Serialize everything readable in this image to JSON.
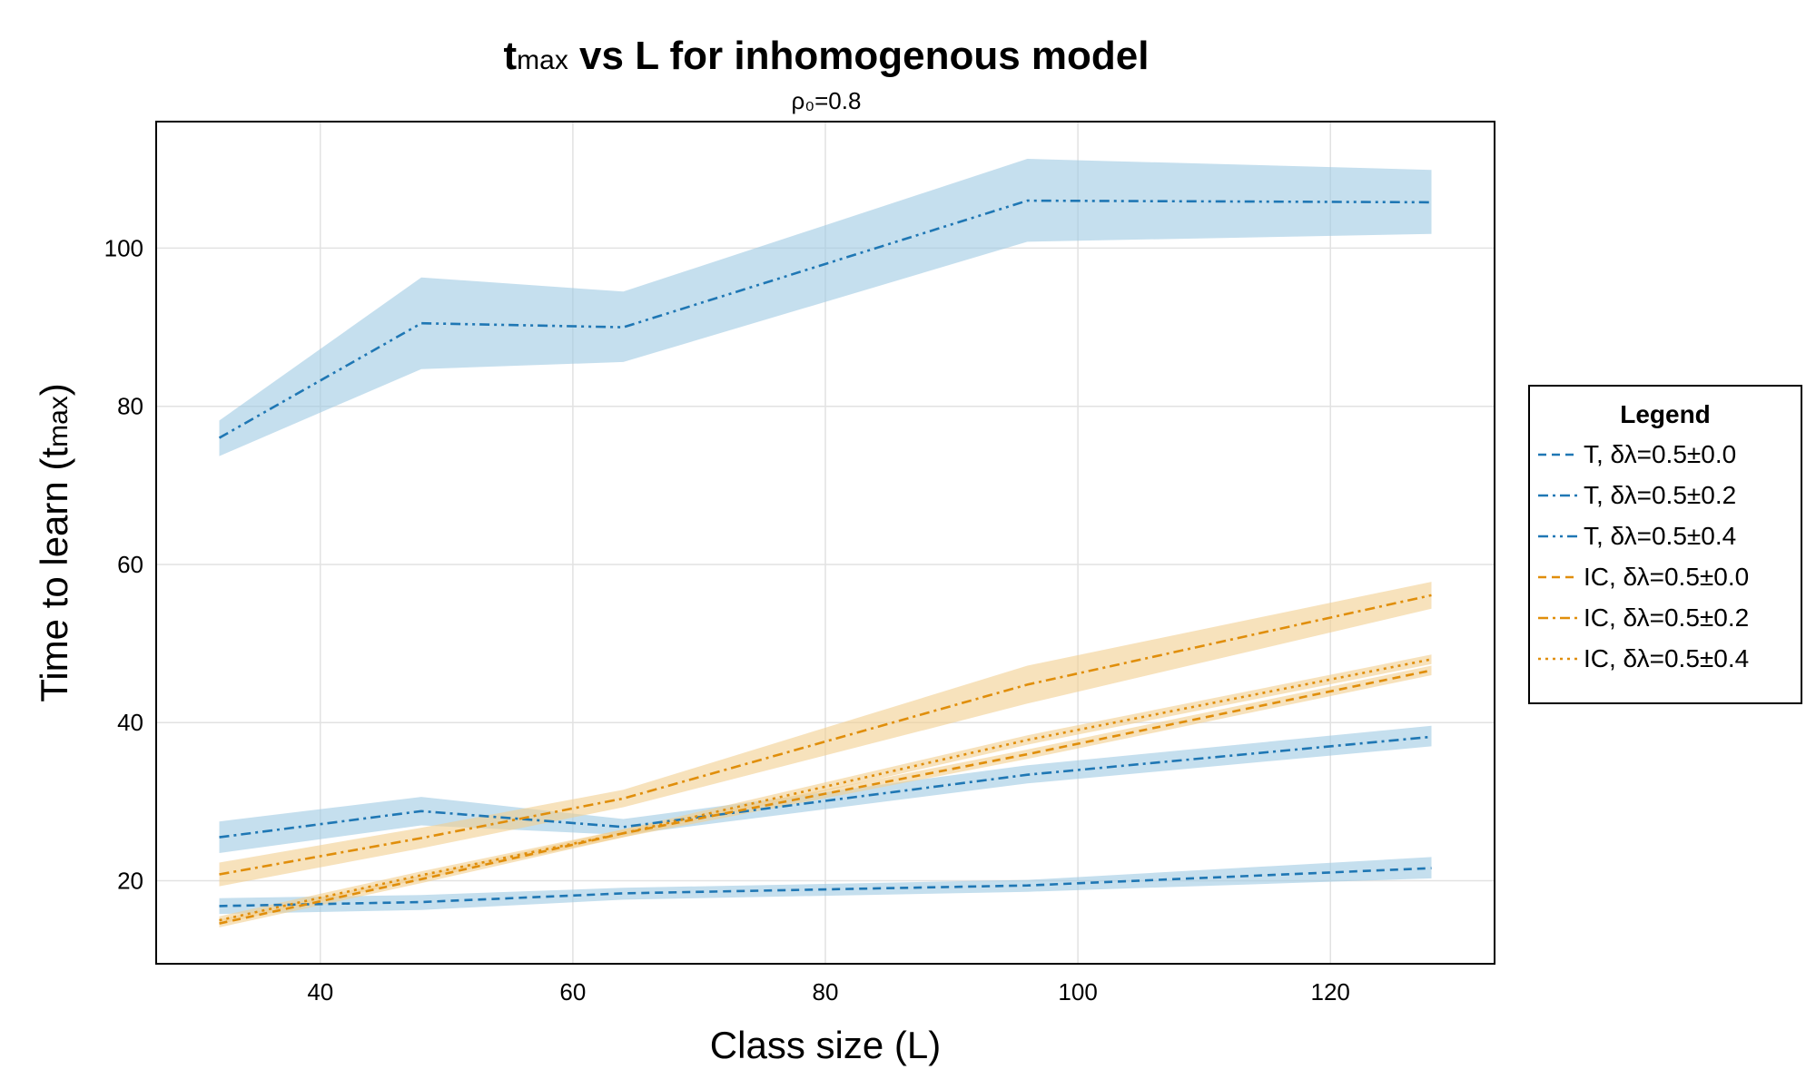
{
  "chart_data": {
    "type": "line",
    "title_main": "t",
    "title_sub_script": "max",
    "title_rest": " vs L for inhomogenous model",
    "subtitle": "ρ₀=0.8",
    "xlabel": "Class size (L)",
    "ylabel_main": "Time to learn (t",
    "ylabel_sub": "max",
    "ylabel_end": ")",
    "xlim": [
      27,
      133
    ],
    "ylim": [
      9.5,
      116
    ],
    "xticks": [
      40,
      60,
      80,
      100,
      120
    ],
    "yticks": [
      20,
      40,
      60,
      80,
      100
    ],
    "grid": true,
    "legend": {
      "title": "Legend",
      "placement": "right"
    },
    "x": [
      32,
      48,
      64,
      96,
      128
    ],
    "series": [
      {
        "name": "T, δλ=0.5±0.0",
        "color": "#1f77b4",
        "band_color": "#9ec9e2",
        "dash": "dash",
        "values": [
          16.8,
          17.3,
          18.4,
          19.4,
          21.6
        ],
        "lower": [
          15.8,
          16.3,
          17.6,
          18.6,
          20.3
        ],
        "upper": [
          17.8,
          18.2,
          19.1,
          20.1,
          23.0
        ]
      },
      {
        "name": "T, δλ=0.5±0.2",
        "color": "#1f77b4",
        "band_color": "#9ec9e2",
        "dash": "dashdot",
        "values": [
          25.5,
          28.8,
          26.8,
          33.4,
          38.2
        ],
        "lower": [
          23.5,
          27.0,
          25.8,
          32.3,
          37.0
        ],
        "upper": [
          27.5,
          30.6,
          27.8,
          34.6,
          39.6
        ]
      },
      {
        "name": "T, δλ=0.5±0.4",
        "color": "#1f77b4",
        "band_color": "#9ec9e2",
        "dash": "dashdotdot",
        "values": [
          76.0,
          90.5,
          90.0,
          106.0,
          105.8
        ],
        "lower": [
          73.7,
          84.7,
          85.6,
          100.8,
          101.8
        ],
        "upper": [
          78.2,
          96.3,
          94.5,
          111.3,
          109.9
        ]
      },
      {
        "name": "IC, δλ=0.5±0.0",
        "color": "#e08e0b",
        "band_color": "#f2cf8f",
        "dash": "dash",
        "values": [
          14.6,
          20.2,
          26.0,
          36.0,
          46.6
        ],
        "lower": [
          14.1,
          19.7,
          25.5,
          35.4,
          46.0
        ],
        "upper": [
          15.1,
          20.7,
          26.5,
          36.6,
          47.2
        ]
      },
      {
        "name": "IC, δλ=0.5±0.2",
        "color": "#e08e0b",
        "band_color": "#f2cf8f",
        "dash": "dashdot",
        "values": [
          20.8,
          25.4,
          30.4,
          44.8,
          56.1
        ],
        "lower": [
          19.3,
          24.1,
          29.3,
          42.4,
          54.4
        ],
        "upper": [
          22.3,
          26.7,
          31.5,
          47.2,
          57.8
        ]
      },
      {
        "name": "IC, δλ=0.5±0.4",
        "color": "#e08e0b",
        "band_color": "#f2cf8f",
        "dash": "dotted",
        "values": [
          15.0,
          20.7,
          26.0,
          37.8,
          48.0
        ],
        "lower": [
          14.5,
          20.2,
          25.5,
          37.2,
          47.4
        ],
        "upper": [
          15.5,
          21.2,
          26.5,
          38.4,
          48.6
        ]
      }
    ]
  }
}
